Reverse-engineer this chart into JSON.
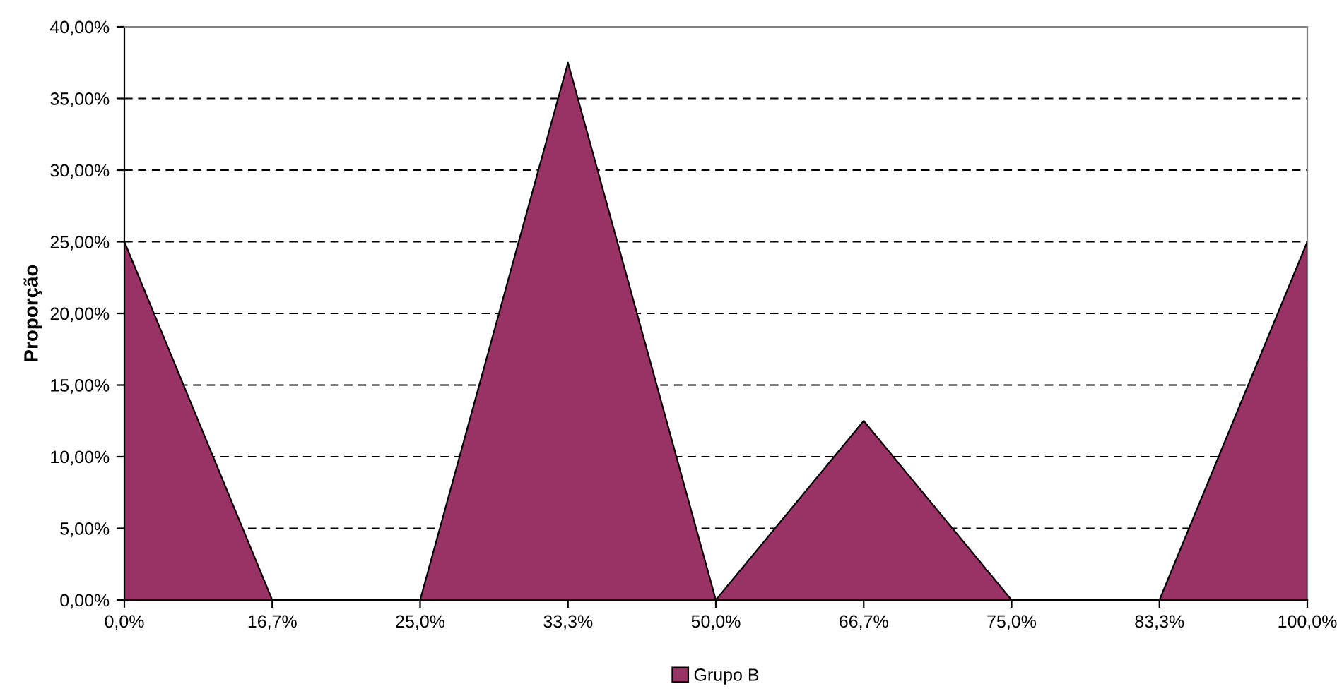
{
  "chart_data": {
    "type": "area",
    "ylabel": "Proporção",
    "categories": [
      "0,0%",
      "16,7%",
      "25,0%",
      "33,3%",
      "50,0%",
      "66,7%",
      "75,0%",
      "83,3%",
      "100,0%"
    ],
    "series": [
      {
        "name": "Grupo B",
        "color": "#993366",
        "values": [
          25,
          0,
          0,
          37.5,
          0,
          12.5,
          0,
          0,
          25
        ]
      }
    ],
    "ylim": [
      0,
      40
    ],
    "yticks": [
      {
        "value": 0,
        "label": "0,00%"
      },
      {
        "value": 5,
        "label": "5,00%"
      },
      {
        "value": 10,
        "label": "10,00%"
      },
      {
        "value": 15,
        "label": "15,00%"
      },
      {
        "value": 20,
        "label": "20,00%"
      },
      {
        "value": 25,
        "label": "25,00%"
      },
      {
        "value": 30,
        "label": "30,00%"
      },
      {
        "value": 35,
        "label": "35,00%"
      },
      {
        "value": 40,
        "label": "40,00%"
      }
    ],
    "grid": "y",
    "legend": "bottom"
  }
}
